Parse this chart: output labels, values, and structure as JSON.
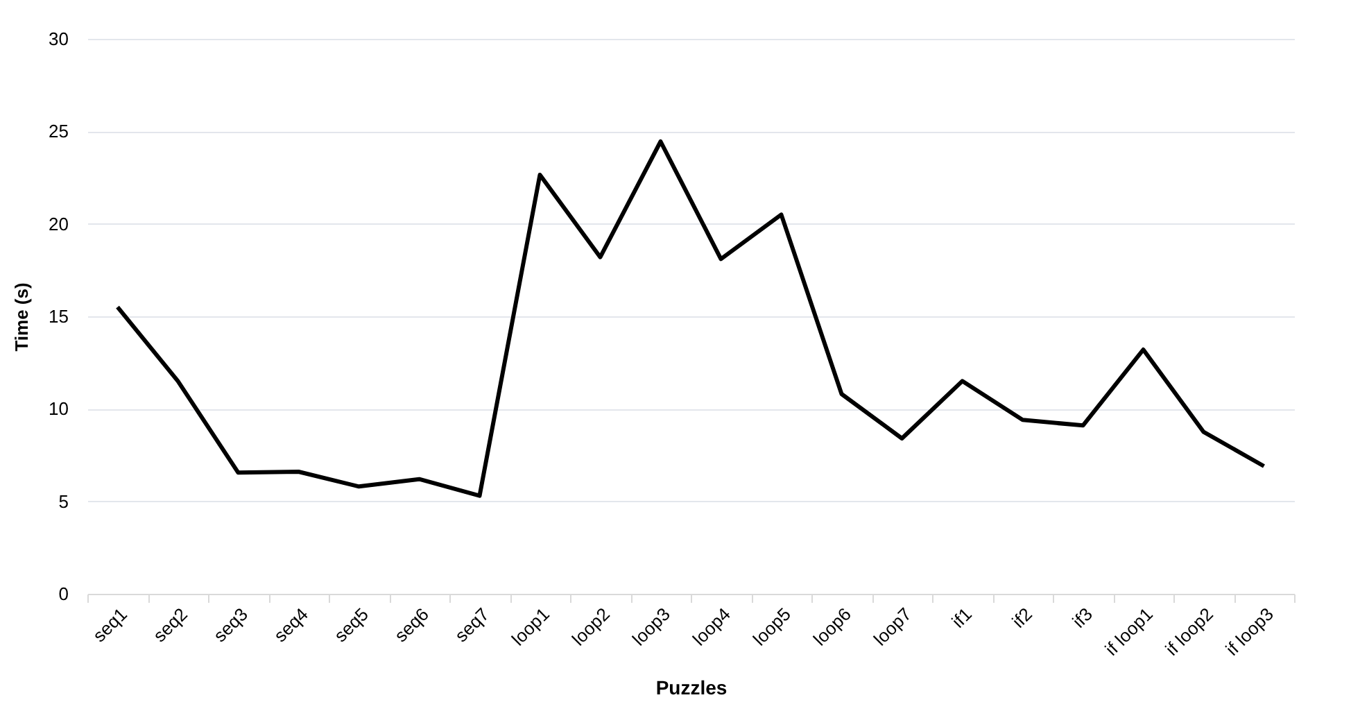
{
  "chart_data": {
    "type": "line",
    "xlabel": "Puzzles",
    "ylabel": "Time (s)",
    "categories": [
      "seq1",
      "seq2",
      "seq3",
      "seq4",
      "seq5",
      "seq6",
      "seq7",
      "loop1",
      "loop2",
      "loop3",
      "loop4",
      "loop5",
      "loop6",
      "loop7",
      "if1",
      "if2",
      "if3",
      "if loop1",
      "if loop2",
      "if loop3"
    ],
    "series": [
      {
        "color": "#000000",
        "values": [
          15.5,
          11.5,
          6.55,
          6.6,
          5.8,
          6.2,
          5.3,
          22.65,
          18.2,
          24.45,
          18.1,
          20.5,
          10.8,
          8.4,
          11.5,
          9.4,
          9.1,
          13.2,
          8.75,
          6.9
        ]
      }
    ],
    "ylim": [
      0,
      30
    ],
    "yticks": [
      0,
      5,
      10,
      15,
      20,
      25,
      30
    ],
    "grid": "y",
    "marker": "none",
    "line_style": "solid"
  }
}
